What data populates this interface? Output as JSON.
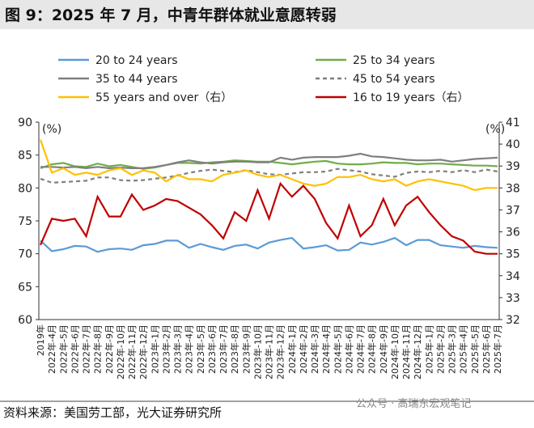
{
  "chart_data": {
    "type": "line",
    "title": "图 9：2025 年 7 月，中青年群体就业意愿转弱",
    "source": "资料来源：美国劳工部，光大证券研究所",
    "watermark": "公众号 · 高瑞东宏观笔记",
    "y_unit": "(%)",
    "y2_unit": "(%)",
    "categories": [
      "2019年",
      "2022年-4月",
      "2022年-5月",
      "2022年-6月",
      "2022年-7月",
      "2022年-8月",
      "2022年-9月",
      "2022年-10月",
      "2022年-11月",
      "2022年-12月",
      "2023年-1月",
      "2023年-2月",
      "2023年-3月",
      "2023年-4月",
      "2023年-5月",
      "2023年-6月",
      "2023年-7月",
      "2023年-8月",
      "2023年-9月",
      "2023年-10月",
      "2023年-11月",
      "2023年-12月",
      "2024年-1月",
      "2024年-2月",
      "2024年-3月",
      "2024年-4月",
      "2024年-5月",
      "2024年-6月",
      "2024年-7月",
      "2024年-8月",
      "2024年-9月",
      "2024年-10月",
      "2024年-11月",
      "2024年-12月",
      "2025年-1月",
      "2025年-2月",
      "2025年-3月",
      "2025年-4月",
      "2025年-5月",
      "2025年-6月",
      "2025年-7月"
    ],
    "ylim": [
      60,
      90
    ],
    "yticks": [
      60,
      65,
      70,
      75,
      80,
      85,
      90
    ],
    "y2lim": [
      32,
      41
    ],
    "y2ticks": [
      32,
      33,
      34,
      35,
      36,
      37,
      38,
      39,
      40,
      41
    ],
    "series": [
      {
        "name": "20 to 24 years",
        "color": "#5b9bd5",
        "dashed": false,
        "values": [
          72.0,
          70.4,
          70.7,
          71.2,
          71.1,
          70.3,
          70.7,
          70.8,
          70.6,
          71.3,
          71.5,
          72.0,
          72.0,
          70.9,
          71.5,
          71.0,
          70.6,
          71.2,
          71.4,
          70.8,
          71.7,
          72.1,
          72.4,
          70.8,
          71.0,
          71.3,
          70.5,
          70.6,
          71.7,
          71.4,
          71.8,
          72.4,
          71.3,
          72.1,
          72.1,
          71.3,
          71.1,
          70.9,
          71.2,
          71.0,
          70.9
        ]
      },
      {
        "name": "25 to 34 years",
        "color": "#70ad47",
        "dashed": false,
        "values": [
          83.0,
          83.6,
          83.8,
          83.3,
          83.2,
          83.7,
          83.3,
          83.5,
          83.2,
          82.9,
          83.1,
          83.5,
          83.8,
          83.8,
          83.7,
          83.9,
          84.0,
          84.2,
          84.1,
          84.0,
          84.0,
          83.8,
          83.6,
          83.8,
          84.0,
          84.1,
          83.7,
          83.6,
          83.6,
          83.7,
          83.9,
          83.8,
          83.8,
          83.6,
          83.7,
          83.7,
          83.6,
          83.5,
          83.4,
          83.4,
          83.3
        ]
      },
      {
        "name": "35 to 44 years",
        "color": "#7f7f7f",
        "dashed": false,
        "values": [
          83.2,
          83.2,
          83.1,
          83.2,
          83.0,
          83.2,
          83.0,
          83.1,
          83.0,
          83.0,
          83.2,
          83.5,
          83.9,
          84.2,
          83.9,
          83.7,
          83.9,
          84.0,
          84.0,
          83.9,
          83.9,
          84.6,
          84.3,
          84.6,
          84.7,
          84.7,
          84.7,
          84.9,
          85.2,
          84.8,
          84.7,
          84.5,
          84.3,
          84.2,
          84.2,
          84.3,
          84.0,
          84.2,
          84.4,
          84.5,
          84.6
        ]
      },
      {
        "name": "45 to 54 years",
        "color": "#7f7f7f",
        "dashed": true,
        "values": [
          81.4,
          80.8,
          80.9,
          81.0,
          81.1,
          81.6,
          81.6,
          81.2,
          81.1,
          81.2,
          81.4,
          81.6,
          81.9,
          82.3,
          82.6,
          82.8,
          82.6,
          82.4,
          82.7,
          82.4,
          82.1,
          82.0,
          82.2,
          82.4,
          82.4,
          82.5,
          82.9,
          82.7,
          82.5,
          82.1,
          81.9,
          81.7,
          82.3,
          82.5,
          82.4,
          82.6,
          82.4,
          82.7,
          82.4,
          82.8,
          82.5
        ]
      },
      {
        "name": "55 years and over（右）",
        "color": "#ffc000",
        "dashed": false,
        "axis": "y2",
        "values": [
          40.2,
          38.7,
          38.9,
          38.6,
          38.7,
          38.6,
          38.8,
          38.9,
          38.6,
          38.8,
          38.7,
          38.3,
          38.6,
          38.4,
          38.4,
          38.3,
          38.6,
          38.7,
          38.8,
          38.6,
          38.5,
          38.6,
          38.4,
          38.2,
          38.1,
          38.2,
          38.5,
          38.5,
          38.6,
          38.4,
          38.3,
          38.4,
          38.1,
          38.3,
          38.4,
          38.3,
          38.2,
          38.1,
          37.9,
          38.0,
          38.0
        ]
      },
      {
        "name": "16 to 19 years（右）",
        "color": "#c00000",
        "dashed": false,
        "axis": "y2",
        "values": [
          35.4,
          36.6,
          36.5,
          36.6,
          35.8,
          37.6,
          36.7,
          36.7,
          37.7,
          37.0,
          37.2,
          37.5,
          37.4,
          37.1,
          36.8,
          36.3,
          35.7,
          36.9,
          36.5,
          37.9,
          36.6,
          38.2,
          37.6,
          38.1,
          37.5,
          36.4,
          35.7,
          37.2,
          35.8,
          36.3,
          37.5,
          36.3,
          37.2,
          37.6,
          36.9,
          36.3,
          35.8,
          35.6,
          35.1,
          35.0,
          35.0
        ]
      }
    ]
  }
}
